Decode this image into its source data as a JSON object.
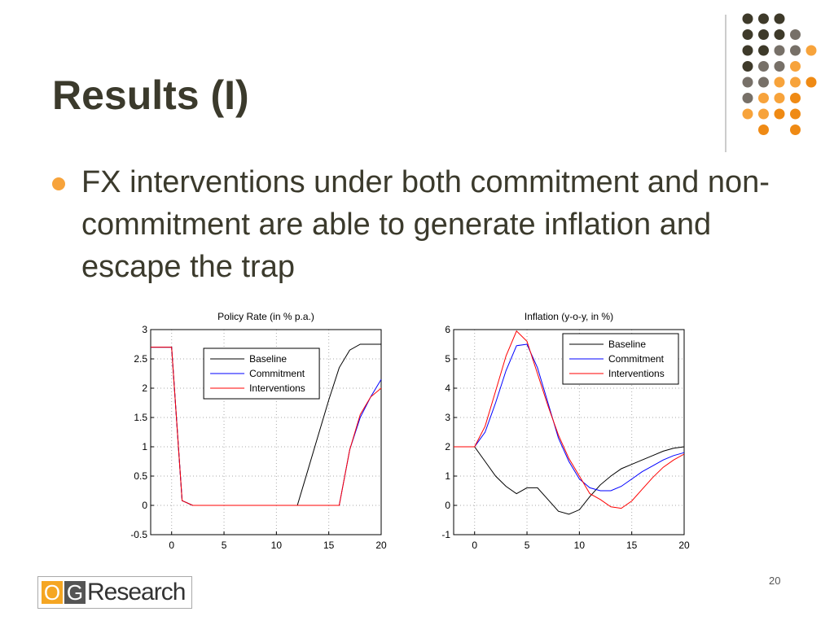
{
  "title": "Results (I)",
  "bullet": "FX interventions under both commitment and non-commitment are able to generate inflation and escape the trap",
  "page_number": "20",
  "logo": [
    "O",
    "G",
    "Research"
  ],
  "chart_data": [
    {
      "type": "line",
      "title": "Policy Rate (in % p.a.)",
      "x": [
        -2,
        -1,
        0,
        1,
        2,
        3,
        4,
        5,
        6,
        7,
        8,
        9,
        10,
        11,
        12,
        13,
        14,
        15,
        16,
        17,
        18,
        19,
        20
      ],
      "xlim": [
        -2,
        20
      ],
      "xticks": [
        0,
        5,
        10,
        15,
        20
      ],
      "ylim": [
        -0.5,
        3
      ],
      "yticks": [
        -0.5,
        0,
        0.5,
        1,
        1.5,
        2,
        2.5,
        3
      ],
      "grid": true,
      "legend": "upper-center",
      "series": [
        {
          "name": "Baseline",
          "color": "#000000",
          "values": [
            2.7,
            2.7,
            2.7,
            0.08,
            0,
            0,
            0,
            0,
            0,
            0,
            0,
            0,
            0,
            0,
            0,
            0.6,
            1.2,
            1.8,
            2.35,
            2.65,
            2.75,
            2.75,
            2.75
          ]
        },
        {
          "name": "Commitment",
          "color": "#0000ff",
          "values": [
            2.7,
            2.7,
            2.7,
            0.08,
            0,
            0,
            0,
            0,
            0,
            0,
            0,
            0,
            0,
            0,
            0,
            0,
            0,
            0,
            0,
            0.95,
            1.5,
            1.85,
            2.15
          ]
        },
        {
          "name": "Interventions",
          "color": "#ff0000",
          "values": [
            2.7,
            2.7,
            2.7,
            0.08,
            0,
            0,
            0,
            0,
            0,
            0,
            0,
            0,
            0,
            0,
            0,
            0,
            0,
            0,
            0,
            0.95,
            1.55,
            1.85,
            2.0
          ]
        }
      ]
    },
    {
      "type": "line",
      "title": "Inflation (y-o-y, in %)",
      "x": [
        -2,
        -1,
        0,
        1,
        2,
        3,
        4,
        5,
        6,
        7,
        8,
        9,
        10,
        11,
        12,
        13,
        14,
        15,
        16,
        17,
        18,
        19,
        20
      ],
      "xlim": [
        -2,
        20
      ],
      "xticks": [
        0,
        5,
        10,
        15,
        20
      ],
      "ylim": [
        -1,
        6
      ],
      "yticks": [
        -1,
        0,
        1,
        2,
        3,
        4,
        5,
        6
      ],
      "grid": true,
      "legend": "upper-right",
      "series": [
        {
          "name": "Baseline",
          "color": "#000000",
          "values": [
            2,
            2,
            2,
            1.5,
            1.0,
            0.65,
            0.4,
            0.6,
            0.6,
            0.2,
            -0.2,
            -0.3,
            -0.15,
            0.3,
            0.7,
            1.0,
            1.25,
            1.4,
            1.55,
            1.7,
            1.85,
            1.95,
            2.0
          ]
        },
        {
          "name": "Commitment",
          "color": "#0000ff",
          "values": [
            2,
            2,
            2,
            2.5,
            3.5,
            4.6,
            5.45,
            5.5,
            4.7,
            3.5,
            2.3,
            1.5,
            0.9,
            0.6,
            0.5,
            0.5,
            0.65,
            0.9,
            1.15,
            1.35,
            1.55,
            1.7,
            1.8
          ]
        },
        {
          "name": "Interventions",
          "color": "#ff0000",
          "values": [
            2,
            2,
            2,
            2.7,
            3.9,
            5.1,
            5.95,
            5.6,
            4.5,
            3.4,
            2.4,
            1.6,
            1.0,
            0.4,
            0.2,
            -0.05,
            -0.1,
            0.15,
            0.55,
            0.95,
            1.3,
            1.55,
            1.75
          ]
        }
      ]
    }
  ]
}
